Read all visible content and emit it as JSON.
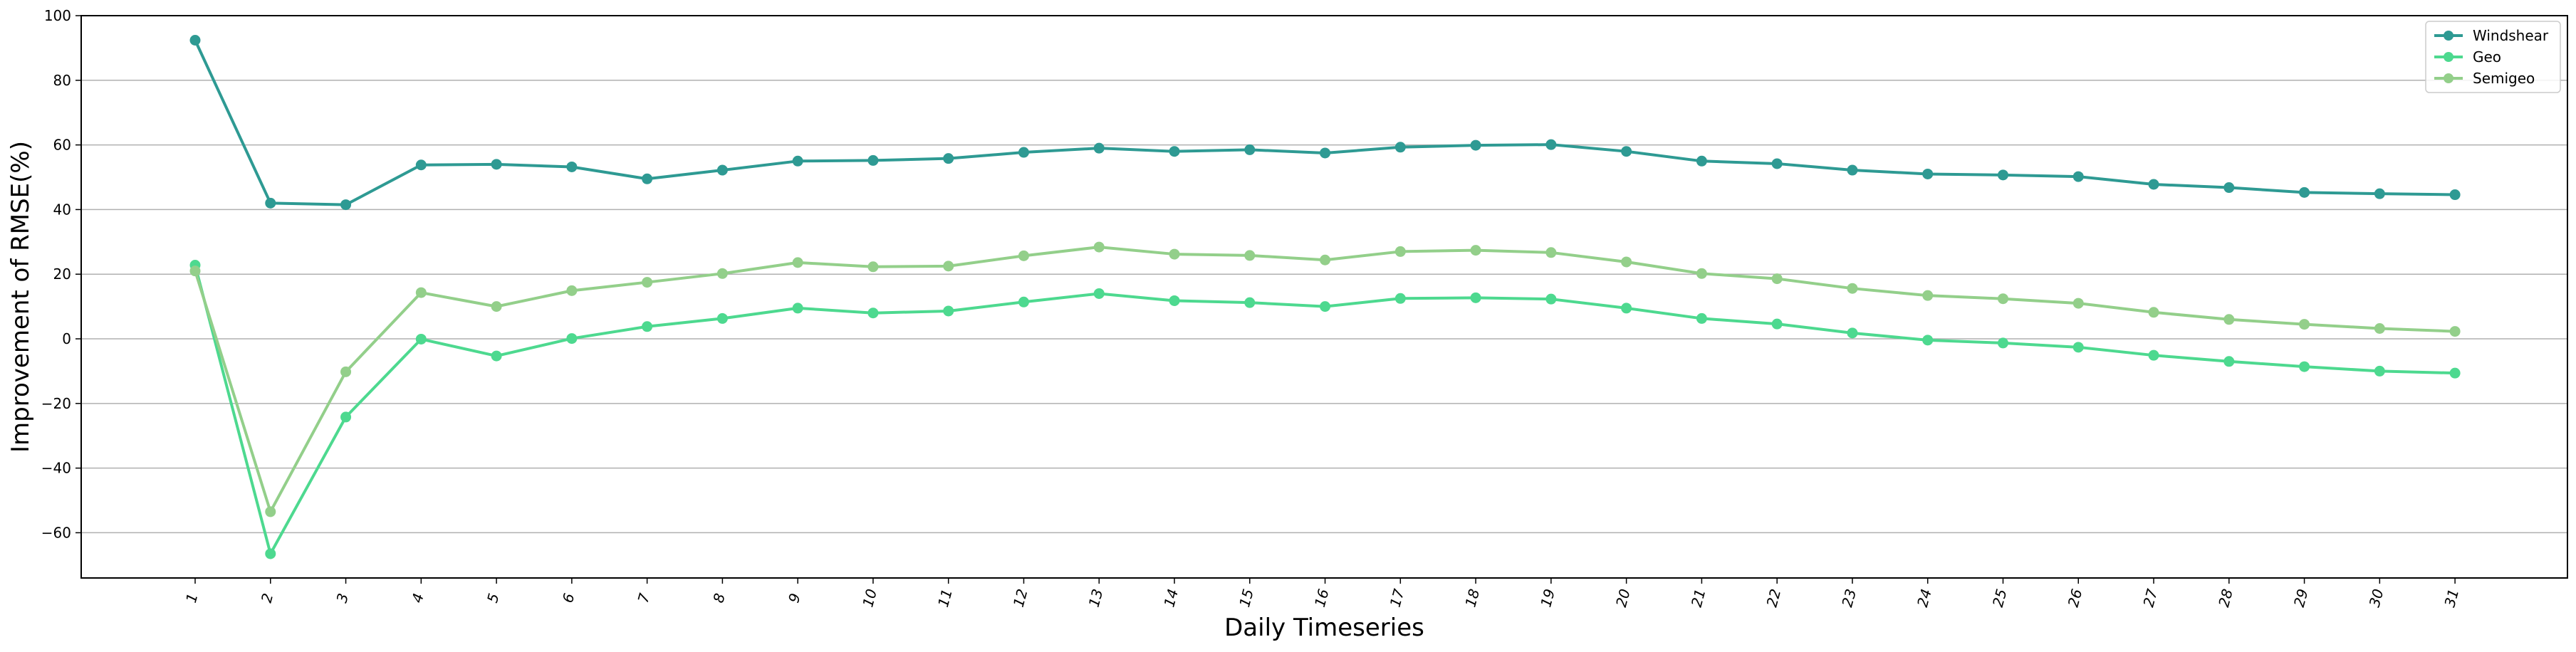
{
  "chart_data": {
    "type": "line",
    "xlabel": "Daily Timeseries",
    "ylabel": "Improvement of RMSE(%)",
    "categories": [
      "1",
      "2",
      "3",
      "4",
      "5",
      "6",
      "7",
      "8",
      "9",
      "10",
      "11",
      "12",
      "13",
      "14",
      "15",
      "16",
      "17",
      "18",
      "19",
      "20",
      "21",
      "22",
      "23",
      "24",
      "25",
      "26",
      "27",
      "28",
      "29",
      "30",
      "31"
    ],
    "ylim": [
      -74,
      100
    ],
    "yticks": [
      -60,
      -40,
      -20,
      0,
      20,
      40,
      60,
      80,
      100
    ],
    "ytick_labels": [
      "−60",
      "−40",
      "−20",
      "0",
      "20",
      "40",
      "60",
      "80",
      "100"
    ],
    "grid": "horizontal",
    "legend_position": "top-right",
    "series": [
      {
        "name": "Windshear",
        "color": "#2e9a93",
        "values": [
          92.4,
          42.0,
          41.5,
          53.8,
          54.0,
          53.2,
          49.5,
          52.2,
          55.0,
          55.2,
          55.8,
          57.7,
          59.0,
          58.0,
          58.5,
          57.5,
          59.3,
          59.9,
          60.1,
          58.0,
          55.0,
          54.2,
          52.2,
          51.0,
          50.7,
          50.2,
          47.8,
          46.8,
          45.3,
          44.9,
          44.6
        ]
      },
      {
        "name": "Geo",
        "color": "#4dd98f",
        "values": [
          22.8,
          -66.5,
          -24.2,
          -0.1,
          -5.3,
          0.1,
          3.8,
          6.3,
          9.5,
          8.0,
          8.6,
          11.4,
          14.0,
          11.8,
          11.2,
          10.0,
          12.5,
          12.7,
          12.3,
          9.5,
          6.3,
          4.6,
          1.8,
          -0.4,
          -1.3,
          -2.6,
          -5.1,
          -7.0,
          -8.6,
          -10.0,
          -10.6
        ]
      },
      {
        "name": "Semigeo",
        "color": "#93cf8a",
        "values": [
          21.0,
          -53.5,
          -10.2,
          14.3,
          10.0,
          14.9,
          17.5,
          20.2,
          23.6,
          22.3,
          22.5,
          25.7,
          28.4,
          26.2,
          25.8,
          24.4,
          27.0,
          27.4,
          26.7,
          23.8,
          20.2,
          18.6,
          15.6,
          13.4,
          12.4,
          11.0,
          8.2,
          6.0,
          4.5,
          3.2,
          2.3
        ]
      }
    ]
  }
}
